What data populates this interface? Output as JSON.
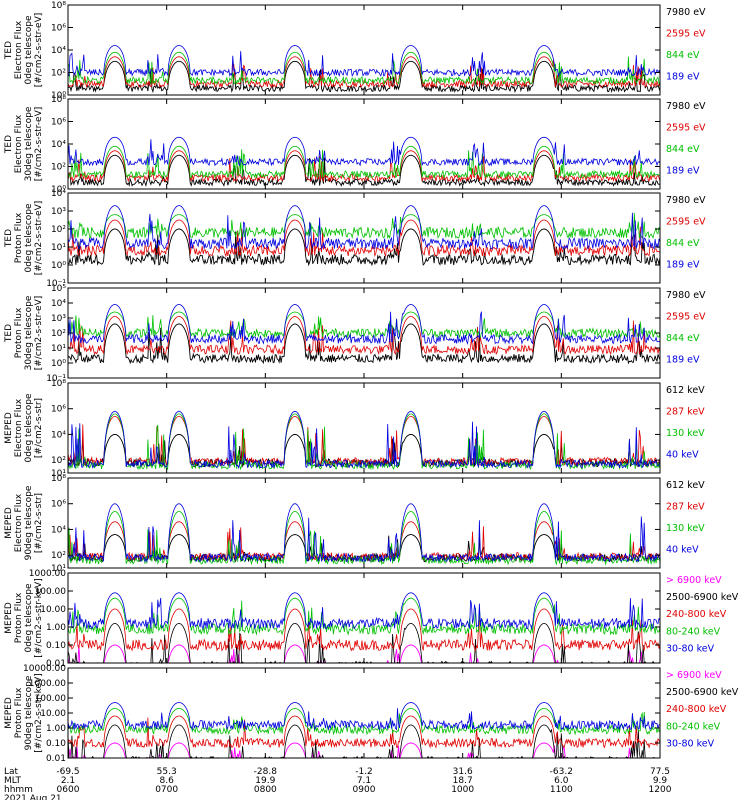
{
  "chart_data": [
    {
      "type": "line",
      "ylabel_lines": [
        "TED",
        "Electron Flux",
        "0deg telescope",
        "[#/cm2-s-str-eV]"
      ],
      "ylog": true,
      "ylim_exp": [
        0,
        8
      ],
      "ytick_labels": [
        "10⁸",
        "10⁶",
        "10⁴",
        "10²",
        "10⁰"
      ],
      "ytick_exps": [
        8,
        6,
        4,
        2,
        0
      ],
      "series": [
        {
          "name": "7980 eV",
          "color": "#000000",
          "base": 0.6,
          "pass_peak": 3.0
        },
        {
          "name": "2595 eV",
          "color": "#e00000",
          "base": 1.0,
          "pass_peak": 3.4
        },
        {
          "name": "844 eV",
          "color": "#00c000",
          "base": 1.3,
          "pass_peak": 3.8
        },
        {
          "name": "189 eV",
          "color": "#0000e0",
          "base": 2.0,
          "pass_peak": 4.4
        }
      ]
    },
    {
      "type": "line",
      "ylabel_lines": [
        "TED",
        "Electron Flux",
        "30deg telescope",
        "[#/cm2-s-str-eV]"
      ],
      "ylog": true,
      "ylim_exp": [
        0,
        8
      ],
      "ytick_labels": [
        "10⁸",
        "10⁶",
        "10⁴",
        "10²",
        "10⁰"
      ],
      "ytick_exps": [
        8,
        6,
        4,
        2,
        0
      ],
      "series": [
        {
          "name": "7980 eV",
          "color": "#000000",
          "base": 0.6,
          "pass_peak": 3.0
        },
        {
          "name": "2595 eV",
          "color": "#e00000",
          "base": 1.0,
          "pass_peak": 3.4
        },
        {
          "name": "844 eV",
          "color": "#00c000",
          "base": 1.3,
          "pass_peak": 3.8
        },
        {
          "name": "189 eV",
          "color": "#0000e0",
          "base": 2.4,
          "pass_peak": 4.6
        }
      ]
    },
    {
      "type": "line",
      "ylabel_lines": [
        "TED",
        "Proton Flux",
        "0deg telescope",
        "[#/cm2-s-str-eV]"
      ],
      "ylog": true,
      "ylim_exp": [
        -1,
        4
      ],
      "ytick_labels": [
        "10⁴",
        "10³",
        "10²",
        "10¹",
        "10⁰",
        "10⁻¹"
      ],
      "ytick_exps": [
        4,
        3,
        2,
        1,
        0,
        -1
      ],
      "series": [
        {
          "name": "7980 eV",
          "color": "#000000",
          "base": 0.3,
          "pass_peak": 2.0
        },
        {
          "name": "2595 eV",
          "color": "#e00000",
          "base": 0.8,
          "pass_peak": 2.5
        },
        {
          "name": "844 eV",
          "color": "#00c000",
          "base": 1.8,
          "pass_peak": 2.8
        },
        {
          "name": "189 eV",
          "color": "#0000e0",
          "base": 1.2,
          "pass_peak": 3.3
        }
      ]
    },
    {
      "type": "line",
      "ylabel_lines": [
        "TED",
        "Proton Flux",
        "30deg telescope",
        "[#/cm2-s-str-eV]"
      ],
      "ylog": true,
      "ylim_exp": [
        -1,
        5
      ],
      "ytick_labels": [
        "10⁵",
        "10⁴",
        "10³",
        "10²",
        "10¹",
        "10⁰",
        "10⁻¹"
      ],
      "ytick_exps": [
        5,
        4,
        3,
        2,
        1,
        0,
        -1
      ],
      "series": [
        {
          "name": "7980 eV",
          "color": "#000000",
          "base": 0.3,
          "pass_peak": 2.6
        },
        {
          "name": "2595 eV",
          "color": "#e00000",
          "base": 0.9,
          "pass_peak": 3.1
        },
        {
          "name": "844 eV",
          "color": "#00c000",
          "base": 2.0,
          "pass_peak": 3.4
        },
        {
          "name": "189 eV",
          "color": "#0000e0",
          "base": 1.6,
          "pass_peak": 3.9
        }
      ]
    },
    {
      "type": "line",
      "ylabel_lines": [
        "MEPED",
        "Electron Flux",
        "0deg telescope",
        "[#/cm2-s-str]"
      ],
      "ylog": true,
      "ylim_exp": [
        1,
        8
      ],
      "ytick_labels": [
        "10⁸",
        "10⁶",
        "10⁴",
        "10²",
        "10¹"
      ],
      "ytick_exps": [
        8,
        6,
        4,
        2,
        1
      ],
      "series": [
        {
          "name": "612 keV",
          "color": "#000000",
          "base": 1.8,
          "pass_peak": 4.0
        },
        {
          "name": "287 keV",
          "color": "#e00000",
          "base": 1.9,
          "pass_peak": 5.4
        },
        {
          "name": "130 keV",
          "color": "#00c000",
          "base": 1.6,
          "pass_peak": 5.6
        },
        {
          "name": "40 keV",
          "color": "#0000e0",
          "base": 1.7,
          "pass_peak": 5.8
        }
      ]
    },
    {
      "type": "line",
      "ylabel_lines": [
        "MEPED",
        "Electron Flux",
        "90deg telescope",
        "[#/cm2-s-str]"
      ],
      "ylog": true,
      "ylim_exp": [
        1,
        8
      ],
      "ytick_labels": [
        "10⁸",
        "10⁶",
        "10⁴",
        "10²",
        "10¹"
      ],
      "ytick_exps": [
        8,
        6,
        4,
        2,
        1
      ],
      "series": [
        {
          "name": "612 keV",
          "color": "#000000",
          "base": 1.8,
          "pass_peak": 3.6
        },
        {
          "name": "287 keV",
          "color": "#e00000",
          "base": 1.9,
          "pass_peak": 4.6
        },
        {
          "name": "130 keV",
          "color": "#00c000",
          "base": 1.6,
          "pass_peak": 5.4
        },
        {
          "name": "40 keV",
          "color": "#0000e0",
          "base": 1.8,
          "pass_peak": 6.0
        }
      ]
    },
    {
      "type": "line",
      "ylabel_lines": [
        "MEPED",
        "Proton Flux",
        "0deg telescope",
        "[#/cm2-s-str-keV]"
      ],
      "ylog": true,
      "ylim_exp": [
        -2,
        3
      ],
      "ytick_labels": [
        "1000.00",
        "100.00",
        "10.00",
        "1.00",
        "0.10",
        "0.01"
      ],
      "ytick_exps": [
        3,
        2,
        1,
        0,
        -1,
        -2
      ],
      "series": [
        {
          "name": "> 6900 keV",
          "color": "#ff00ff",
          "base": -2.3,
          "pass_peak": -1.0
        },
        {
          "name": "2500-6900 keV",
          "color": "#000000",
          "base": -2.2,
          "pass_peak": 0.2
        },
        {
          "name": "240-800 keV",
          "color": "#e00000",
          "base": -1.0,
          "pass_peak": 1.0
        },
        {
          "name": "80-240 keV",
          "color": "#00c000",
          "base": -0.1,
          "pass_peak": 1.6
        },
        {
          "name": "30-80 keV",
          "color": "#0000e0",
          "base": 0.2,
          "pass_peak": 1.9
        }
      ]
    },
    {
      "type": "line",
      "ylabel_lines": [
        "MEPED",
        "Proton Flux",
        "90deg telescope",
        "[#/cm2-s-str-keV]"
      ],
      "ylog": true,
      "ylim_exp": [
        -2,
        4
      ],
      "ytick_labels": [
        "10000.00",
        "1000.00",
        "100.00",
        "10.00",
        "1.00",
        "0.10",
        "0.01"
      ],
      "ytick_exps": [
        4,
        3,
        2,
        1,
        0,
        -1,
        -2
      ],
      "series": [
        {
          "name": "> 6900 keV",
          "color": "#ff00ff",
          "base": -2.3,
          "pass_peak": -1.0
        },
        {
          "name": "2500-6900 keV",
          "color": "#000000",
          "base": -2.2,
          "pass_peak": 0.2
        },
        {
          "name": "240-800 keV",
          "color": "#e00000",
          "base": -1.0,
          "pass_peak": 0.8
        },
        {
          "name": "80-240 keV",
          "color": "#00c000",
          "base": -0.1,
          "pass_peak": 1.3
        },
        {
          "name": "30-80 keV",
          "color": "#0000e0",
          "base": 0.2,
          "pass_peak": 1.7
        }
      ]
    }
  ],
  "x_axis": {
    "row_labels": [
      "Lat",
      "MLT",
      "hhmm"
    ],
    "ticks": [
      {
        "lat": "-69.5",
        "mlt": "2.1",
        "hhmm": "0600"
      },
      {
        "lat": "55.3",
        "mlt": "8.6",
        "hhmm": "0700"
      },
      {
        "lat": "-28.8",
        "mlt": "19.9",
        "hhmm": "0800"
      },
      {
        "lat": "-1.2",
        "mlt": "7.1",
        "hhmm": "0900"
      },
      {
        "lat": "31.6",
        "mlt": "18.7",
        "hhmm": "1000"
      },
      {
        "lat": "-63.2",
        "mlt": "6.0",
        "hhmm": "1100"
      },
      {
        "lat": "77.5",
        "mlt": "9.9",
        "hhmm": "1200"
      }
    ],
    "date": "2021 Aug 21"
  },
  "passes_hours": [
    0.95,
    2.25,
    4.6,
    6.95,
    9.65
  ]
}
